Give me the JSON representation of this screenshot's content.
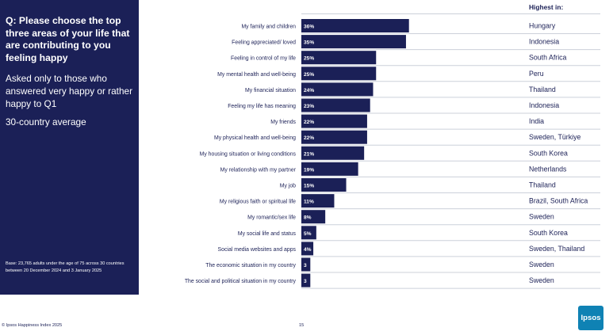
{
  "sidebar": {
    "question": "Q: Please choose the top three areas of your life that are contributing to you feeling happy",
    "asked": "Asked only to those who answered very happy or rather happy to Q1",
    "average": "30-country average",
    "base": "Base: 23,765 adults under the age of 75 across 30 countries between 20 December 2024 and 3 January 2025"
  },
  "highest_header": "Highest in:",
  "footer": {
    "copyright": "© Ipsos Happiness Index 2025",
    "page": "15",
    "logo": "Ipsos"
  },
  "colors": {
    "bar": "#1b2057",
    "sidebar": "#1b2057",
    "divider": "#ccd0da",
    "logo": "#0f82b4"
  },
  "chart_data": {
    "type": "bar",
    "orientation": "horizontal",
    "title": "Q: Please choose the top three areas of your life that are contributing to you feeling happy",
    "xlabel": "",
    "ylabel": "",
    "xlim": [
      0,
      100
    ],
    "categories": [
      "My family and children",
      "Feeling appreciated/ loved",
      "Feeling in control of my life",
      "My mental health and well-being",
      "My financial situation",
      "Feeling my life has meaning",
      "My friends",
      "My physical health and well-being",
      "My housing situation or living conditions",
      "My relationship with my partner",
      "My job",
      "My religious faith or spiritual life",
      "My romantic/sex life",
      "My social life and status",
      "Social media websites and apps",
      "The economic situation in my country",
      "The social and political situation in my country"
    ],
    "values": [
      36,
      35,
      25,
      25,
      24,
      23,
      22,
      22,
      21,
      19,
      15,
      11,
      8,
      5,
      4,
      3,
      3
    ],
    "labels": [
      "36%",
      "35%",
      "25%",
      "25%",
      "24%",
      "23%",
      "22%",
      "22%",
      "21%",
      "19%",
      "15%",
      "11%",
      "8%",
      "5%",
      "4%",
      "3",
      "3"
    ],
    "highest_in": [
      "Hungary",
      "Indonesia",
      "South Africa",
      "Peru",
      "Thailand",
      "Indonesia",
      "India",
      "Sweden, Türkiye",
      "South Korea",
      "Netherlands",
      "Thailand",
      "Brazil, South Africa",
      "Sweden",
      "South Korea",
      "Sweden, Thailand",
      "Sweden",
      "Sweden"
    ]
  }
}
